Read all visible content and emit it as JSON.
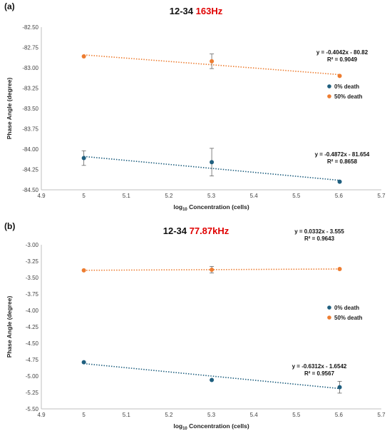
{
  "chart_data": [
    {
      "panel": "(a)",
      "type": "scatter",
      "title": "12-34",
      "title_highlight": "163Hz",
      "xlabel_prefix": "log",
      "xlabel_sub": "10",
      "xlabel_suffix": " Concentration (cells)",
      "ylabel": "Phase Angle (degree)",
      "xlim": [
        4.9,
        5.7
      ],
      "ylim": [
        -84.5,
        -82.5
      ],
      "xticks": [
        "4.9",
        "5",
        "5.1",
        "5.2",
        "5.3",
        "5.4",
        "5.5",
        "5.6",
        "5.7"
      ],
      "yticks": [
        "-82.50",
        "-82.75",
        "-83.00",
        "-83.25",
        "-83.50",
        "-83.75",
        "-84.00",
        "-84.25",
        "-84.50"
      ],
      "grid": false,
      "legend_position": "right",
      "series": [
        {
          "name": "0% death",
          "color": "#1f5f7f",
          "x": [
            5.0,
            5.301,
            5.602
          ],
          "y": [
            -84.11,
            -84.16,
            -84.4
          ],
          "yerr": [
            0.09,
            0.17,
            0
          ],
          "trendline": {
            "slope": -0.4872,
            "intercept": -81.654
          },
          "equation": "y = -0.4872x - 81.654",
          "r2_label": "R² = 0.8658"
        },
        {
          "name": "50% death",
          "color": "#ed7d31",
          "x": [
            5.0,
            5.301,
            5.602
          ],
          "y": [
            -82.86,
            -82.92,
            -83.1
          ],
          "yerr": [
            0,
            0.09,
            0
          ],
          "trendline": {
            "slope": -0.4042,
            "intercept": -80.82
          },
          "equation": "y = -0.4042x - 80.82",
          "r2_label": "R² = 0.9049"
        }
      ]
    },
    {
      "panel": "(b)",
      "type": "scatter",
      "title": "12-34",
      "title_highlight": "77.87kHz",
      "xlabel_prefix": "log",
      "xlabel_sub": "10",
      "xlabel_suffix": " Concentration (cells)",
      "ylabel": "Phase Angle (degree)",
      "xlim": [
        4.9,
        5.7
      ],
      "ylim": [
        -5.5,
        -3.0
      ],
      "xticks": [
        "4.9",
        "5",
        "5.1",
        "5.2",
        "5.3",
        "5.4",
        "5.5",
        "5.6",
        "5.7"
      ],
      "yticks": [
        "-3.00",
        "-3.25",
        "-3.50",
        "-3.75",
        "-4.00",
        "-4.25",
        "-4.50",
        "-4.75",
        "-5.00",
        "-5.25",
        "-5.50"
      ],
      "grid": false,
      "legend_position": "right",
      "series": [
        {
          "name": "0% death",
          "color": "#1f5f7f",
          "x": [
            5.0,
            5.301,
            5.602
          ],
          "y": [
            -4.79,
            -5.06,
            -5.17
          ],
          "yerr": [
            0,
            0,
            0.09
          ],
          "trendline": {
            "slope": -0.6312,
            "intercept": -1.6542
          },
          "equation": "y = -0.6312x - 1.6542",
          "r2_label": "R² = 0.9567"
        },
        {
          "name": "50% death",
          "color": "#ed7d31",
          "x": [
            5.0,
            5.301,
            5.602
          ],
          "y": [
            -3.39,
            -3.38,
            -3.37
          ],
          "yerr": [
            0,
            0.05,
            0
          ],
          "trendline": {
            "slope": 0.0332,
            "intercept": -3.555
          },
          "equation": "y = 0.0332x - 3.555",
          "r2_label": "R² = 0.9643"
        }
      ]
    }
  ]
}
